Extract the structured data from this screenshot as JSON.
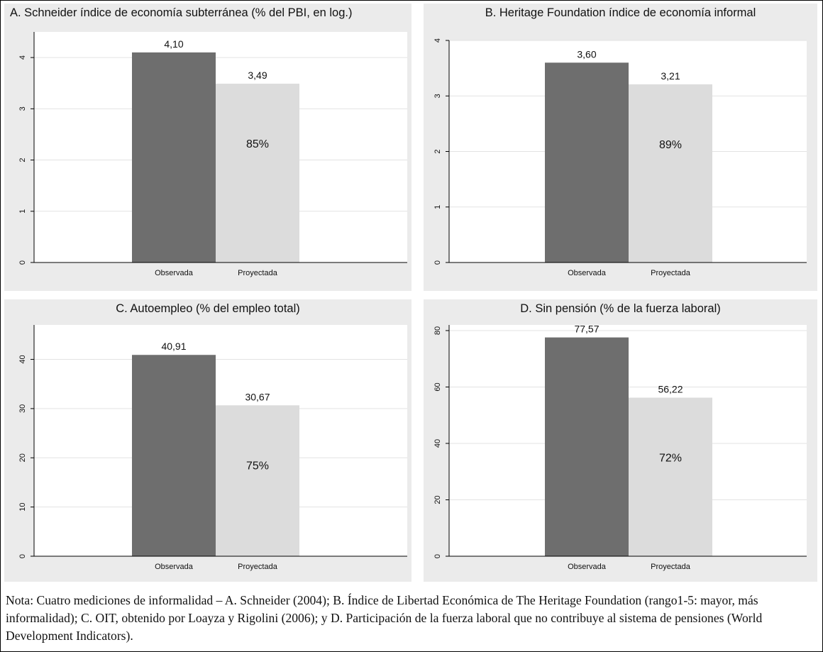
{
  "chart_data": [
    {
      "type": "bar",
      "title": "A. Schneider índice de economía subterránea (% del PBI, en log.)",
      "categories": [
        "Observada",
        "Proyectada"
      ],
      "values": [
        4.1,
        3.49
      ],
      "value_labels": [
        "4,10",
        "3,49"
      ],
      "ratio_label": "85%",
      "yticks": [
        0,
        1,
        2,
        3,
        4
      ],
      "ylim": [
        0,
        4.5
      ],
      "grid": true,
      "colors": [
        "#6e6e6e",
        "#dcdcdc"
      ]
    },
    {
      "type": "bar",
      "title": "B. Heritage Foundation índice de economía informal",
      "categories": [
        "Observada",
        "Proyectada"
      ],
      "values": [
        3.6,
        3.21
      ],
      "value_labels": [
        "3,60",
        "3,21"
      ],
      "ratio_label": "89%",
      "yticks": [
        0,
        1,
        2,
        3,
        4
      ],
      "ylim": [
        0,
        4
      ],
      "grid": true,
      "colors": [
        "#6e6e6e",
        "#dcdcdc"
      ]
    },
    {
      "type": "bar",
      "title": "C. Autoempleo (% del empleo total)",
      "categories": [
        "Observada",
        "Proyectada"
      ],
      "values": [
        40.91,
        30.67
      ],
      "value_labels": [
        "40,91",
        "30,67"
      ],
      "ratio_label": "75%",
      "yticks": [
        0,
        10,
        20,
        30,
        40
      ],
      "ylim": [
        0,
        47
      ],
      "grid": true,
      "colors": [
        "#6e6e6e",
        "#dcdcdc"
      ]
    },
    {
      "type": "bar",
      "title": "D. Sin pensión (% de la fuerza laboral)",
      "categories": [
        "Observada",
        "Proyectada"
      ],
      "values": [
        77.57,
        56.22
      ],
      "value_labels": [
        "77,57",
        "56,22"
      ],
      "ratio_label": "72%",
      "yticks": [
        0,
        20,
        40,
        60,
        80
      ],
      "ylim": [
        0,
        82
      ],
      "grid": true,
      "colors": [
        "#6e6e6e",
        "#dcdcdc"
      ]
    }
  ],
  "note": "Nota: Cuatro mediciones de informalidad – A. Schneider (2004); B. Índice de Libertad Económica de The Heritage Foundation (rango1-5: mayor, más informalidad); C. OIT, obtenido por Loayza y Rigolini (2006); y D. Participación de la fuerza laboral que no contribuye al sistema de pensiones (World Development Indicators)."
}
